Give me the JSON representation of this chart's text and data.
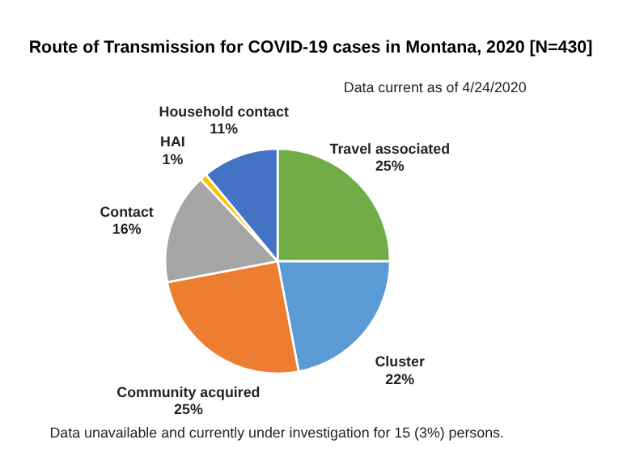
{
  "chart_data": {
    "type": "pie",
    "title": "Route of Transmission for COVID-19 cases in Montana, 2020 [N=430]",
    "categories": [
      "Travel associated",
      "Cluster",
      "Community acquired",
      "Contact",
      "HAI",
      "Household contact"
    ],
    "values": [
      25,
      22,
      25,
      16,
      1,
      11
    ],
    "value_labels": [
      "25%",
      "22%",
      "25%",
      "16%",
      "1%",
      "11%"
    ],
    "colors": [
      "#70ad47",
      "#5b9bd5",
      "#ed7d31",
      "#a5a5a5",
      "#ffc000",
      "#4472c4"
    ],
    "annotations": [
      "Data current as of 4/24/2020",
      "Data unavailable and currently under investigation for 15 (3%) persons."
    ],
    "legend": false
  }
}
